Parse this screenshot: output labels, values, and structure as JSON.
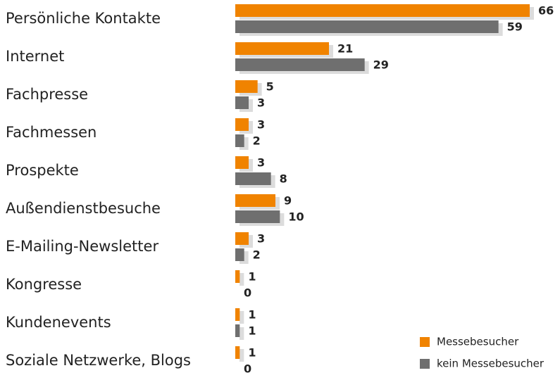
{
  "chart_data": {
    "type": "bar",
    "orientation": "horizontal",
    "categories": [
      "Persönliche Kontakte",
      "Internet",
      "Fachpresse",
      "Fachmessen",
      "Prospekte",
      "Außendienstbesuche",
      "E-Mailing-Newsletter",
      "Kongresse",
      "Kundenevents",
      "Soziale Netzwerke, Blogs"
    ],
    "series": [
      {
        "name": "Messebesucher",
        "color": "#f08300",
        "values": [
          66,
          21,
          5,
          3,
          3,
          9,
          3,
          1,
          1,
          1
        ]
      },
      {
        "name": "kein Messebesucher",
        "color": "#6f6f6f",
        "values": [
          59,
          29,
          3,
          2,
          8,
          10,
          2,
          0,
          1,
          0
        ]
      }
    ],
    "xlim": [
      0,
      66
    ],
    "legend": "lower right"
  }
}
